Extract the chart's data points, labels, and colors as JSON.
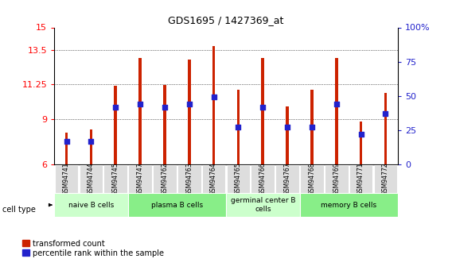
{
  "title": "GDS1695 / 1427369_at",
  "samples": [
    "GSM94741",
    "GSM94744",
    "GSM94745",
    "GSM94747",
    "GSM94762",
    "GSM94763",
    "GSM94764",
    "GSM94765",
    "GSM94766",
    "GSM94767",
    "GSM94768",
    "GSM94769",
    "GSM94771",
    "GSM94772"
  ],
  "transformed_count": [
    8.1,
    8.3,
    11.15,
    13.0,
    11.2,
    12.9,
    13.8,
    10.9,
    13.0,
    9.8,
    10.9,
    13.0,
    8.8,
    10.7
  ],
  "percentile_rank": [
    17,
    17,
    42,
    44,
    42,
    44,
    49,
    27,
    42,
    27,
    27,
    44,
    22,
    37
  ],
  "ylim_left": [
    6,
    15
  ],
  "ylim_right": [
    0,
    100
  ],
  "yticks_left": [
    6,
    9,
    11.25,
    13.5,
    15
  ],
  "yticks_right": [
    0,
    25,
    50,
    75,
    100
  ],
  "bar_color": "#cc2200",
  "dot_color": "#2222cc",
  "bar_width": 0.12,
  "cell_type_groups": [
    {
      "label": "naive B cells",
      "start": 0,
      "end": 3,
      "color": "#ccffcc"
    },
    {
      "label": "plasma B cells",
      "start": 3,
      "end": 7,
      "color": "#88ee88"
    },
    {
      "label": "germinal center B\ncells",
      "start": 7,
      "end": 10,
      "color": "#ccffcc"
    },
    {
      "label": "memory B cells",
      "start": 10,
      "end": 14,
      "color": "#88ee88"
    }
  ],
  "legend_labels": [
    "transformed count",
    "percentile rank within the sample"
  ],
  "legend_colors": [
    "#cc2200",
    "#2222cc"
  ],
  "cell_type_label": "cell type",
  "background_color": "#ffffff",
  "tick_bg_color": "#dddddd"
}
